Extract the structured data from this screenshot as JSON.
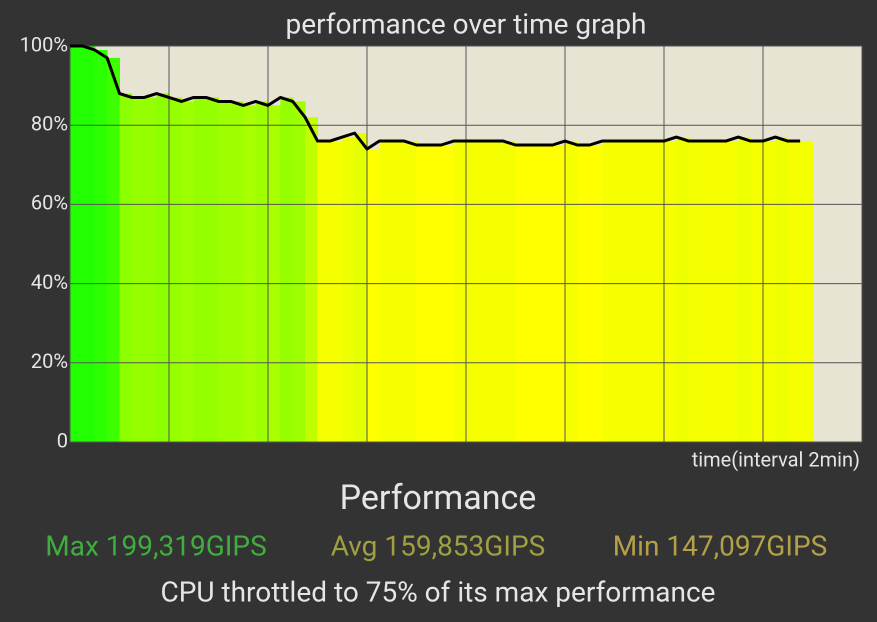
{
  "chart_data": {
    "type": "line",
    "title": "performance over time graph",
    "x_label": "time(interval 2min)",
    "x": [
      0,
      0.25,
      0.5,
      0.75,
      1,
      1.25,
      1.5,
      1.75,
      2,
      2.25,
      2.5,
      2.75,
      3,
      3.25,
      3.5,
      3.75,
      4,
      4.25,
      4.5,
      4.75,
      5,
      5.25,
      5.5,
      5.75,
      6,
      6.25,
      6.5,
      6.75,
      7,
      7.25,
      7.5,
      7.75,
      8,
      8.25,
      8.5,
      8.75,
      9,
      9.25,
      9.5,
      9.75,
      10,
      10.25,
      10.5,
      10.75,
      11,
      11.25,
      11.5,
      11.75,
      12,
      12.25,
      12.5,
      12.75,
      13,
      13.25,
      13.5,
      13.75,
      14,
      14.25,
      14.5,
      14.75
    ],
    "series": [
      {
        "color": "#000000",
        "values": [
          100,
          100,
          99,
          97,
          88,
          87,
          87,
          88,
          87,
          86,
          87,
          87,
          86,
          86,
          85,
          86,
          85,
          87,
          86,
          82,
          76,
          76,
          77,
          78,
          74,
          76,
          76,
          76,
          75,
          75,
          75,
          76,
          76,
          76,
          76,
          76,
          75,
          75,
          75,
          75,
          76,
          75,
          75,
          76,
          76,
          76,
          76,
          76,
          76,
          77,
          76,
          76,
          76,
          76,
          77,
          76,
          76,
          77,
          76,
          76
        ]
      }
    ],
    "xlim": [
      0,
      16
    ],
    "xticks": [
      0,
      2,
      4,
      6,
      8,
      10,
      12,
      14,
      16
    ],
    "ylim": [
      0,
      100
    ],
    "yticks": [
      0,
      {
        "value": 20,
        "label": "20%"
      },
      {
        "value": 40,
        "label": "40%"
      },
      {
        "value": 60,
        "label": "60%"
      },
      {
        "value": 80,
        "label": "80%"
      },
      {
        "value": 100,
        "label": "100%"
      }
    ],
    "grid": true,
    "plot_background": "#e8e4d4"
  },
  "summary": {
    "heading": "Performance",
    "stats": [
      {
        "text": "Max 199,319GIPS",
        "color": "#3fae3f"
      },
      {
        "text": "Avg 159,853GIPS",
        "color": "#a0a040"
      },
      {
        "text": "Min 147,097GIPS",
        "color": "#b4a046"
      }
    ],
    "note": "CPU throttled to 75% of its max performance"
  }
}
